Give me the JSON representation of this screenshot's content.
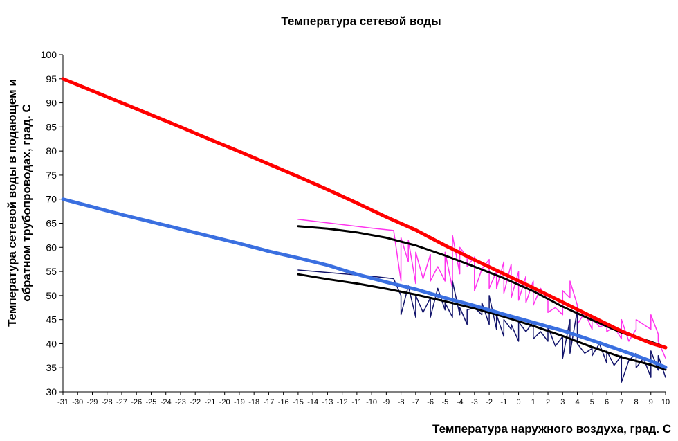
{
  "chart_data": {
    "type": "line",
    "title": "Температура сетевой воды",
    "xlabel": "Температура наружного воздуха, град. С",
    "ylabel": [
      "Температура сетевой воды в подающем и",
      "обратном трубопроводах, град. С"
    ],
    "xlim": [
      -31,
      10
    ],
    "ylim": [
      30,
      100
    ],
    "x_ticks": [
      -31,
      -30,
      -29,
      -28,
      -27,
      -26,
      -25,
      -24,
      -23,
      -22,
      -21,
      -20,
      -19,
      -18,
      -17,
      -16,
      -15,
      -14,
      -13,
      -12,
      -11,
      -10,
      -9,
      -8,
      -7,
      -6,
      -5,
      -4,
      -3,
      -2,
      -1,
      0,
      1,
      2,
      3,
      4,
      5,
      6,
      7,
      8,
      9,
      10
    ],
    "y_ticks": [
      30,
      35,
      40,
      45,
      50,
      55,
      60,
      65,
      70,
      75,
      80,
      85,
      90,
      95,
      100
    ],
    "grid": false,
    "legend": "none",
    "series": [
      {
        "color": "#ff0000",
        "width": 5,
        "x": [
          -31,
          -29,
          -27,
          -25,
          -23,
          -21,
          -19,
          -17,
          -15,
          -13,
          -11,
          -9,
          -7,
          -5,
          -3,
          -1,
          1,
          3,
          5,
          7,
          9,
          10
        ],
        "y": [
          95,
          92.5,
          90,
          87.5,
          85,
          82.4,
          79.9,
          77.3,
          74.7,
          72,
          69.2,
          66.3,
          63.6,
          60.4,
          57.4,
          54.5,
          51.6,
          48.6,
          45.6,
          42.6,
          40.1,
          39.2
        ]
      },
      {
        "color": "#3a6fe0",
        "width": 5,
        "x": [
          -31,
          -29,
          -27,
          -25,
          -23,
          -21,
          -19,
          -17,
          -15,
          -13,
          -11,
          -9,
          -7,
          -5,
          -3,
          -1,
          1,
          3,
          5,
          7,
          9,
          10
        ],
        "y": [
          70,
          68.4,
          66.8,
          65.3,
          63.8,
          62.3,
          60.8,
          59.2,
          57.8,
          56.3,
          54.4,
          52.8,
          51.3,
          49.5,
          47.9,
          46.1,
          44.4,
          42.7,
          40.7,
          38.6,
          36.4,
          35.1
        ]
      },
      {
        "color": "#000000",
        "width": 3,
        "x": [
          -15,
          -13,
          -11,
          -9,
          -7,
          -5,
          -3,
          -1,
          1,
          3,
          5,
          7,
          9,
          10
        ],
        "y": [
          64.4,
          63.9,
          63.1,
          62,
          60.4,
          58.3,
          56,
          53.6,
          50.9,
          47.7,
          44.9,
          42.3,
          40.4,
          39.3
        ]
      },
      {
        "color": "#000000",
        "width": 3,
        "x": [
          -15,
          -13,
          -11,
          -9,
          -7,
          -5,
          -3,
          -1,
          1,
          3,
          5,
          7,
          9,
          10
        ],
        "y": [
          54.4,
          53.4,
          52.5,
          51.4,
          50.2,
          48.8,
          47.3,
          45.6,
          43.7,
          41.6,
          39.3,
          37.2,
          35.6,
          34.6
        ]
      },
      {
        "color": "#ff33ee",
        "width": 1.5,
        "x": [
          -15,
          -10,
          -8.5,
          -8,
          -8,
          -7.5,
          -7.5,
          -7,
          -7,
          -6.5,
          -6,
          -6,
          -5.5,
          -5,
          -5,
          -4.5,
          -4.5,
          -4,
          -4,
          -3.5,
          -3.5,
          -3,
          -3,
          -2.5,
          -2,
          -2,
          -1.5,
          -1.5,
          -1,
          -1,
          -0.5,
          -0.5,
          0,
          0,
          0.5,
          0.5,
          1,
          1,
          1.5,
          2,
          2,
          2.5,
          3,
          3,
          3.5,
          3.5,
          4,
          4,
          4.5,
          5,
          5,
          5.5,
          6,
          6,
          6.5,
          7,
          7,
          7.5,
          8,
          8,
          8.5,
          9,
          9,
          9.5,
          9.5,
          10
        ],
        "y": [
          65.8,
          64,
          63.5,
          53,
          62,
          57,
          61.5,
          52.5,
          59,
          53.5,
          58.5,
          53,
          56,
          53,
          59,
          51.5,
          62.5,
          54.5,
          60,
          58,
          56,
          58,
          51,
          55.5,
          57.5,
          51.5,
          55,
          51.5,
          57,
          50.5,
          56.5,
          49.5,
          55,
          49,
          54,
          48.5,
          53,
          48,
          51.5,
          49,
          46.5,
          47.5,
          46,
          51,
          49.5,
          53,
          48,
          44,
          46.5,
          43,
          45.5,
          43.5,
          44,
          42.5,
          43.5,
          41,
          45,
          40.5,
          43,
          45,
          44,
          43,
          46,
          42,
          40.5,
          37
        ]
      },
      {
        "color": "#12146b",
        "width": 1.5,
        "x": [
          -15,
          -10,
          -8.5,
          -8,
          -8,
          -7.5,
          -7,
          -7,
          -6.5,
          -6,
          -6,
          -5.5,
          -5,
          -5,
          -4.5,
          -4.5,
          -4,
          -4,
          -3.5,
          -3.5,
          -3,
          -2.5,
          -2.5,
          -2,
          -2,
          -1.5,
          -1.5,
          -1,
          -1,
          -0.5,
          -0.5,
          0,
          0,
          0.5,
          1,
          1,
          1.5,
          2,
          2,
          2.5,
          3,
          3,
          3.5,
          3.5,
          4,
          4,
          4.5,
          5,
          5,
          5.5,
          6,
          6,
          6.5,
          7,
          7,
          7.5,
          8,
          8,
          8.5,
          9,
          9,
          9.5,
          9.5,
          10
        ],
        "y": [
          55.3,
          54,
          53.5,
          50,
          46,
          52,
          45.5,
          50,
          46.5,
          49.5,
          45.5,
          51.5,
          47,
          48.5,
          45.5,
          53,
          46,
          47.5,
          44,
          47,
          47.5,
          46,
          48.5,
          44,
          50,
          43,
          46,
          41.5,
          45,
          43,
          44,
          40.5,
          44.5,
          42.5,
          44.5,
          41,
          42.5,
          40.5,
          43.5,
          39.5,
          41.5,
          37,
          45,
          38,
          47,
          40,
          38,
          39,
          37.5,
          40,
          36,
          38.5,
          35.5,
          37.5,
          32,
          36.5,
          38,
          35,
          37,
          33,
          38.5,
          34.5,
          37.5,
          33
        ]
      }
    ]
  }
}
